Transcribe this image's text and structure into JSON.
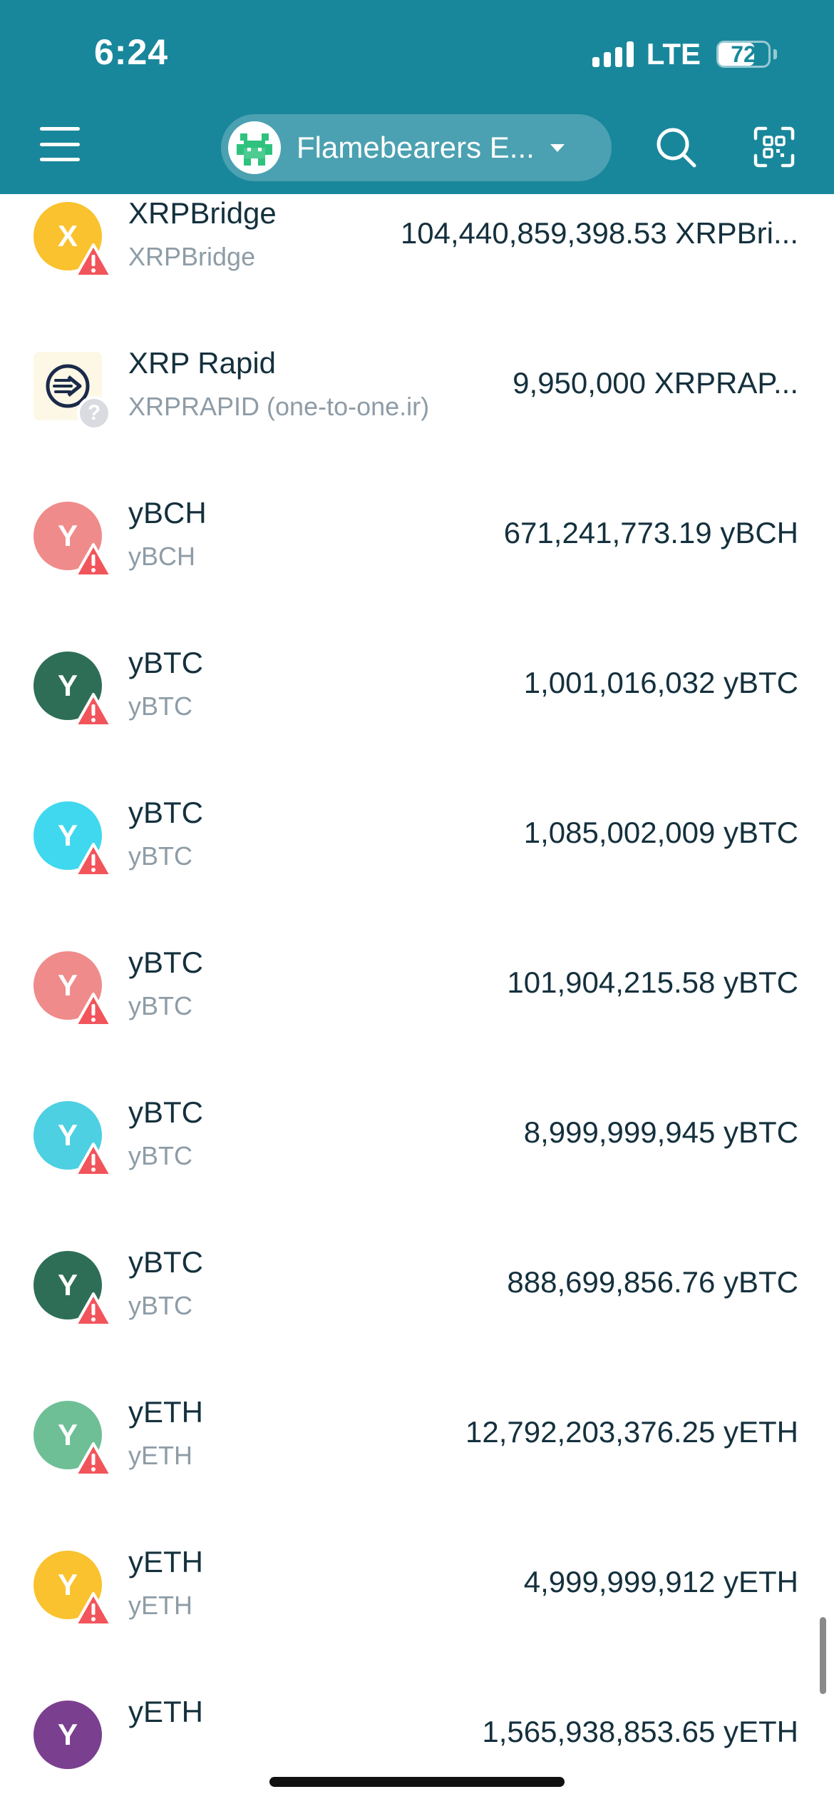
{
  "status_bar": {
    "time": "6:24",
    "network": "LTE",
    "battery": "72",
    "battery_level_percent": 72
  },
  "header": {
    "wallet_name": "Flamebearers E...",
    "menu_icon": "hamburger-menu-icon",
    "search_icon": "search-icon",
    "scan_icon": "qr-scan-icon"
  },
  "colors": {
    "header_bg": "#19879b",
    "warning": "#f2545b"
  },
  "tokens": [
    {
      "initial": "X",
      "name": "XRPBridge",
      "issuer": "XRPBridge",
      "balance": "104,440,859,398.53 XRPBri...",
      "icon_color": "#f9c22e",
      "badge": "warning"
    },
    {
      "initial": "",
      "name": "XRP Rapid",
      "issuer": "XRPRAPID (one-to-one.ir)",
      "balance": "9,950,000 XRPRAP...",
      "icon_color": "#fdf8e6",
      "badge": "unknown",
      "badge_text": "?"
    },
    {
      "initial": "Y",
      "name": "yBCH",
      "issuer": "yBCH",
      "balance": "671,241,773.19 yBCH",
      "icon_color": "#f08b8b",
      "badge": "warning"
    },
    {
      "initial": "Y",
      "name": "yBTC",
      "issuer": "yBTC",
      "balance": "1,001,016,032 yBTC",
      "icon_color": "#2e6e57",
      "badge": "warning"
    },
    {
      "initial": "Y",
      "name": "yBTC",
      "issuer": "yBTC",
      "balance": "1,085,002,009 yBTC",
      "icon_color": "#3fd8ef",
      "badge": "warning"
    },
    {
      "initial": "Y",
      "name": "yBTC",
      "issuer": "yBTC",
      "balance": "101,904,215.58 yBTC",
      "icon_color": "#f08b8b",
      "badge": "warning"
    },
    {
      "initial": "Y",
      "name": "yBTC",
      "issuer": "yBTC",
      "balance": "8,999,999,945 yBTC",
      "icon_color": "#4cd0e2",
      "badge": "warning"
    },
    {
      "initial": "Y",
      "name": "yBTC",
      "issuer": "yBTC",
      "balance": "888,699,856.76 yBTC",
      "icon_color": "#2e6e57",
      "badge": "warning"
    },
    {
      "initial": "Y",
      "name": "yETH",
      "issuer": "yETH",
      "balance": "12,792,203,376.25 yETH",
      "icon_color": "#6fbf96",
      "badge": "warning"
    },
    {
      "initial": "Y",
      "name": "yETH",
      "issuer": "yETH",
      "balance": "4,999,999,912 yETH",
      "icon_color": "#f9c22e",
      "badge": "warning"
    },
    {
      "initial": "Y",
      "name": "yETH",
      "issuer": "",
      "balance": "1,565,938,853.65 yETH",
      "icon_color": "#7b3f8f",
      "badge": "none"
    }
  ]
}
